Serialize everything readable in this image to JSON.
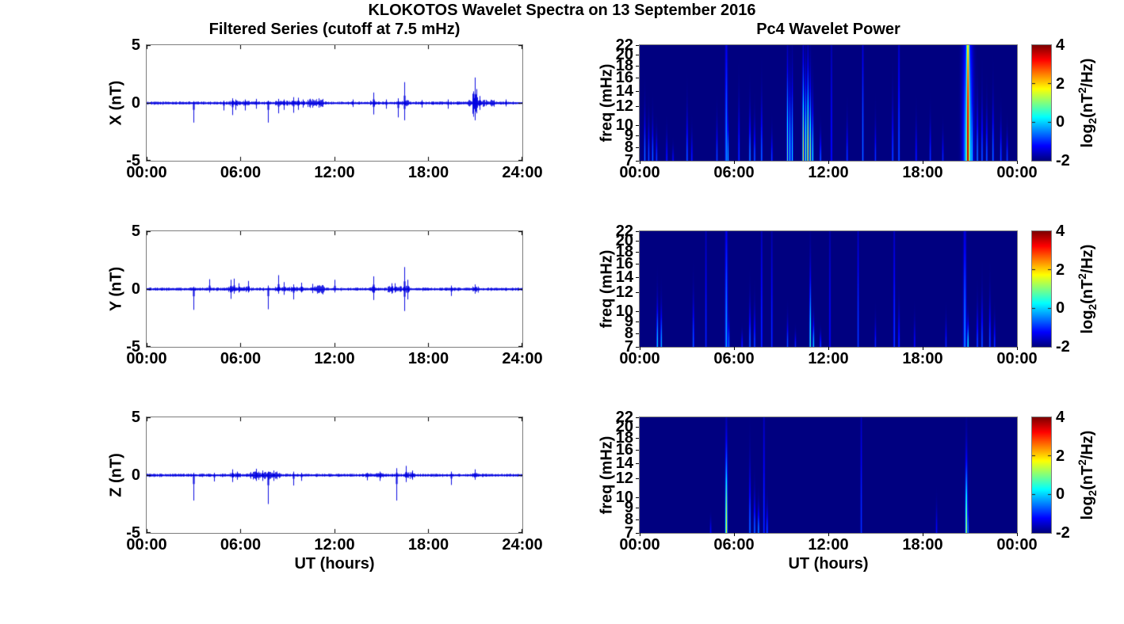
{
  "figure": {
    "title": "KLOKOTOS Wavelet Spectra on 13 September 2016",
    "left_title": "Filtered Series (cutoff at 7.5 mHz)",
    "right_title": "Pc4 Wavelet Power",
    "xlabel": "UT (hours)",
    "colorbar_label": {
      "base1": "log",
      "sub": "2",
      "base2": "(nT",
      "sup": "2",
      "base3": "/Hz)"
    },
    "line_color": "#0000e0",
    "colormap": "jet"
  },
  "chart_data": [
    {
      "type": "line",
      "component": "X",
      "ylabel": "X (nT)",
      "xticks": [
        "00:00",
        "06:00",
        "12:00",
        "18:00",
        "24:00"
      ],
      "yticks": [
        5,
        0,
        -5
      ],
      "ylim": [
        -5,
        5
      ],
      "xlim_hours": [
        0,
        24
      ],
      "noise_base": 0.08,
      "noise_regions": [
        [
          5.2,
          6.6,
          0.16
        ],
        [
          8.2,
          10.1,
          0.16
        ],
        [
          10.3,
          11.3,
          0.3
        ],
        [
          14.3,
          14.7,
          0.18
        ],
        [
          16.2,
          16.8,
          0.2
        ],
        [
          20.5,
          22.3,
          0.22
        ],
        [
          20.85,
          21.2,
          0.85
        ]
      ],
      "spikes": [
        [
          3.0,
          0.15,
          -1.7
        ],
        [
          4.9,
          0.2,
          -0.65
        ],
        [
          5.5,
          0.4,
          -1.05
        ],
        [
          5.7,
          0.3,
          -0.6
        ],
        [
          6.3,
          0.3,
          -0.65
        ],
        [
          7.0,
          0.35,
          -0.5
        ],
        [
          7.75,
          0.2,
          -1.7
        ],
        [
          8.4,
          0.35,
          -0.9
        ],
        [
          8.8,
          0.3,
          -0.6
        ],
        [
          9.4,
          0.5,
          -0.85
        ],
        [
          9.7,
          0.45,
          -0.6
        ],
        [
          10.0,
          0.3,
          -0.4
        ],
        [
          11.0,
          0.4,
          -0.4
        ],
        [
          13.2,
          0.3,
          -0.35
        ],
        [
          14.5,
          0.9,
          -1.0
        ],
        [
          15.3,
          0.3,
          -0.5
        ],
        [
          16.1,
          0.4,
          -1.25
        ],
        [
          16.5,
          1.8,
          -1.5
        ],
        [
          17.6,
          0.25,
          -0.4
        ],
        [
          19.3,
          0.3,
          -0.5
        ],
        [
          20.9,
          1.0,
          -0.8
        ],
        [
          21.0,
          2.2,
          -1.5
        ],
        [
          21.1,
          1.2,
          -0.9
        ],
        [
          21.3,
          0.6,
          -0.6
        ],
        [
          23.0,
          0.3,
          -0.3
        ]
      ]
    },
    {
      "type": "line",
      "component": "Y",
      "ylabel": "Y (nT)",
      "xticks": [
        "00:00",
        "06:00",
        "12:00",
        "18:00",
        "24:00"
      ],
      "yticks": [
        5,
        0,
        -5
      ],
      "ylim": [
        -5,
        5
      ],
      "xlim_hours": [
        0,
        24
      ],
      "noise_base": 0.08,
      "noise_regions": [
        [
          5.2,
          6.6,
          0.18
        ],
        [
          8.2,
          10.0,
          0.16
        ],
        [
          10.7,
          11.4,
          0.28
        ],
        [
          14.3,
          14.7,
          0.2
        ],
        [
          15.4,
          16.3,
          0.22
        ],
        [
          16.4,
          16.8,
          0.25
        ],
        [
          20.8,
          21.3,
          0.18
        ]
      ],
      "spikes": [
        [
          3.0,
          0.2,
          -1.8
        ],
        [
          4.0,
          0.85,
          -0.3
        ],
        [
          5.4,
          0.8,
          -0.85
        ],
        [
          5.6,
          0.9,
          -0.4
        ],
        [
          5.9,
          0.5,
          -0.3
        ],
        [
          6.5,
          0.7,
          -0.3
        ],
        [
          7.75,
          0.3,
          -1.75
        ],
        [
          8.4,
          1.2,
          -0.4
        ],
        [
          8.8,
          0.6,
          -0.5
        ],
        [
          9.4,
          0.4,
          -0.9
        ],
        [
          9.9,
          0.55,
          -0.3
        ],
        [
          10.6,
          0.45,
          -0.35
        ],
        [
          12.0,
          0.8,
          -0.3
        ],
        [
          14.5,
          1.1,
          -0.95
        ],
        [
          15.7,
          0.5,
          -0.4
        ],
        [
          15.9,
          0.5,
          -0.3
        ],
        [
          16.5,
          1.9,
          -1.9
        ],
        [
          16.7,
          0.8,
          -0.9
        ],
        [
          19.5,
          0.3,
          -0.6
        ],
        [
          21.0,
          0.4,
          -0.4
        ]
      ]
    },
    {
      "type": "line",
      "component": "Z",
      "ylabel": "Z (nT)",
      "xticks": [
        "00:00",
        "06:00",
        "12:00",
        "18:00",
        "24:00"
      ],
      "yticks": [
        5,
        0,
        -5
      ],
      "ylim": [
        -5,
        5
      ],
      "xlim_hours": [
        0,
        24
      ],
      "noise_base": 0.08,
      "noise_regions": [
        [
          5.3,
          6.0,
          0.15
        ],
        [
          6.5,
          8.6,
          0.25
        ],
        [
          14.0,
          15.2,
          0.15
        ],
        [
          16.4,
          17.1,
          0.22
        ],
        [
          20.8,
          21.3,
          0.18
        ]
      ],
      "spikes": [
        [
          3.0,
          0.2,
          -2.2
        ],
        [
          4.3,
          0.2,
          -0.55
        ],
        [
          5.5,
          0.5,
          -0.6
        ],
        [
          5.8,
          0.3,
          -0.4
        ],
        [
          7.0,
          0.55,
          -0.5
        ],
        [
          7.4,
          0.4,
          -0.5
        ],
        [
          7.75,
          0.3,
          -2.5
        ],
        [
          8.1,
          0.4,
          -0.5
        ],
        [
          9.4,
          0.3,
          -0.9
        ],
        [
          9.9,
          0.2,
          -0.5
        ],
        [
          14.1,
          0.2,
          -0.45
        ],
        [
          14.9,
          0.3,
          -0.5
        ],
        [
          16.0,
          0.6,
          -2.2
        ],
        [
          16.6,
          0.8,
          -0.6
        ],
        [
          17.0,
          0.4,
          -0.4
        ],
        [
          19.5,
          0.3,
          -0.85
        ],
        [
          21.0,
          0.5,
          -0.4
        ]
      ]
    },
    {
      "type": "heatmap",
      "component": "X",
      "ylabel": "freq (mHz)",
      "xticks": [
        "00:00",
        "06:00",
        "12:00",
        "18:00",
        "00:00"
      ],
      "yticks": [
        22,
        20,
        18,
        16,
        14,
        12,
        10,
        9,
        8,
        7
      ],
      "yscale": "log",
      "ylim": [
        7,
        22
      ],
      "xlim_hours": [
        0,
        24
      ],
      "clim": [
        -2,
        4
      ],
      "colorbar_ticks": [
        4,
        2,
        0,
        -2
      ],
      "events": [
        [
          0.3,
          11,
          -0.5
        ],
        [
          0.55,
          10,
          -0.7
        ],
        [
          0.8,
          10,
          -0.5
        ],
        [
          1.05,
          9,
          -0.8
        ],
        [
          1.7,
          9,
          -1.0
        ],
        [
          2.1,
          8,
          -1.2
        ],
        [
          3.0,
          11,
          -0.5
        ],
        [
          3.3,
          9,
          -1.0
        ],
        [
          4.9,
          10,
          -0.8
        ],
        [
          5.5,
          26,
          -0.3,
          0.07
        ],
        [
          5.6,
          10,
          0.0
        ],
        [
          6.3,
          12,
          -0.8
        ],
        [
          7.0,
          11,
          -0.2
        ],
        [
          7.3,
          10,
          -0.5
        ],
        [
          7.75,
          12,
          -0.4
        ],
        [
          8.4,
          9,
          -0.8
        ],
        [
          9.4,
          17,
          0.8
        ],
        [
          9.55,
          14,
          0.4
        ],
        [
          9.7,
          15,
          0.2
        ],
        [
          10.4,
          17,
          1.8
        ],
        [
          10.55,
          15,
          1.0
        ],
        [
          10.7,
          16,
          2.2
        ],
        [
          10.85,
          14,
          1.4
        ],
        [
          11.0,
          12,
          0.4
        ],
        [
          11.5,
          9,
          -0.5
        ],
        [
          12.2,
          26,
          -1.0
        ],
        [
          13.2,
          10,
          -0.8
        ],
        [
          14.2,
          26,
          -0.5
        ],
        [
          15.0,
          10,
          -0.9
        ],
        [
          16.1,
          12,
          -0.6
        ],
        [
          16.5,
          26,
          -0.5
        ],
        [
          17.6,
          10,
          -1.0
        ],
        [
          18.5,
          10,
          -0.9
        ],
        [
          19.3,
          9,
          -1.0
        ],
        [
          20.9,
          60,
          4.0,
          0.1
        ],
        [
          20.9,
          30,
          0.5,
          0.28
        ],
        [
          21.15,
          14,
          0.4
        ],
        [
          21.5,
          12,
          -0.3
        ],
        [
          21.8,
          12,
          -0.5
        ],
        [
          22.1,
          11,
          -0.5
        ],
        [
          22.5,
          12,
          -0.4
        ],
        [
          23.0,
          10,
          -0.7
        ],
        [
          23.4,
          9,
          -0.8
        ]
      ]
    },
    {
      "type": "heatmap",
      "component": "Y",
      "ylabel": "freq (mHz)",
      "xticks": [
        "00:00",
        "06:00",
        "12:00",
        "18:00",
        "00:00"
      ],
      "yticks": [
        22,
        20,
        18,
        16,
        14,
        12,
        10,
        9,
        8,
        7
      ],
      "yscale": "log",
      "ylim": [
        7,
        22
      ],
      "xlim_hours": [
        0,
        24
      ],
      "clim": [
        -2,
        4
      ],
      "colorbar_ticks": [
        4,
        2,
        0,
        -2
      ],
      "events": [
        [
          1.1,
          10.5,
          0.2
        ],
        [
          1.35,
          10,
          0.0
        ],
        [
          3.4,
          11,
          -0.5
        ],
        [
          4.2,
          26,
          -1.0
        ],
        [
          5.5,
          26,
          -0.2,
          0.07
        ],
        [
          5.65,
          9,
          -0.4
        ],
        [
          6.5,
          8,
          -1.0
        ],
        [
          7.0,
          10.5,
          -0.4
        ],
        [
          7.3,
          10,
          -0.6
        ],
        [
          7.75,
          26,
          -0.8
        ],
        [
          8.4,
          22,
          -0.9
        ],
        [
          9.4,
          9,
          -0.7
        ],
        [
          9.9,
          8,
          -1.0
        ],
        [
          10.85,
          14,
          0.8
        ],
        [
          11.05,
          9,
          0.2
        ],
        [
          11.5,
          8,
          -0.7
        ],
        [
          12.1,
          26,
          -1.1
        ],
        [
          13.9,
          26,
          -0.8
        ],
        [
          15.0,
          9,
          -1.0
        ],
        [
          16.2,
          26,
          -0.7
        ],
        [
          16.5,
          10,
          -0.8
        ],
        [
          17.5,
          9,
          -1.1
        ],
        [
          19.5,
          9,
          -1.0
        ],
        [
          20.7,
          26,
          -0.4,
          0.08
        ],
        [
          20.9,
          9,
          0.5
        ],
        [
          21.5,
          10,
          -0.6
        ],
        [
          21.8,
          11,
          -0.5
        ],
        [
          22.3,
          11,
          -0.6
        ],
        [
          22.6,
          9,
          -0.8
        ]
      ]
    },
    {
      "type": "heatmap",
      "component": "Z",
      "ylabel": "freq (mHz)",
      "xticks": [
        "00:00",
        "06:00",
        "12:00",
        "18:00",
        "00:00"
      ],
      "yticks": [
        22,
        20,
        18,
        16,
        14,
        12,
        10,
        9,
        8,
        7
      ],
      "yscale": "log",
      "ylim": [
        7,
        22
      ],
      "xlim_hours": [
        0,
        24
      ],
      "clim": [
        -2,
        4
      ],
      "colorbar_ticks": [
        4,
        2,
        0,
        -2
      ],
      "events": [
        [
          4.5,
          8,
          -1.2
        ],
        [
          5.5,
          16,
          1.8,
          0.06
        ],
        [
          7.0,
          13,
          -0.3
        ],
        [
          7.3,
          10,
          -0.4
        ],
        [
          7.55,
          9,
          -0.2
        ],
        [
          7.9,
          26,
          -0.8
        ],
        [
          8.1,
          9,
          -0.6
        ],
        [
          14.1,
          26,
          -0.9
        ],
        [
          18.9,
          9,
          -1.2
        ],
        [
          20.8,
          14,
          1.5,
          0.06
        ],
        [
          20.9,
          9,
          -0.3
        ]
      ]
    }
  ]
}
